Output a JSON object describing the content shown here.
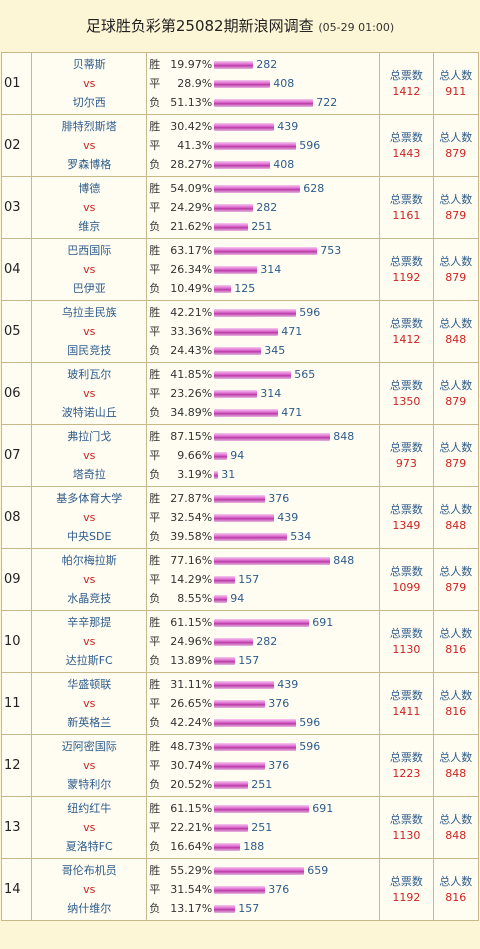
{
  "header": {
    "title": "足球胜负彩第25082期新浪网调查",
    "date": "(05-29 01:00)"
  },
  "labels": {
    "win": "胜",
    "draw": "平",
    "lose": "负",
    "vs": "vs",
    "total_votes": "总票数",
    "total_people": "总人数"
  },
  "matches": [
    {
      "num": "01",
      "home": "贝蒂斯",
      "away": "切尔西",
      "win": {
        "pct": "19.97%",
        "count": "282"
      },
      "draw": {
        "pct": "28.9%",
        "count": "408"
      },
      "lose": {
        "pct": "51.13%",
        "count": "722"
      },
      "votes": "1412",
      "people": "911"
    },
    {
      "num": "02",
      "home": "腓特烈斯塔",
      "away": "罗森博格",
      "win": {
        "pct": "30.42%",
        "count": "439"
      },
      "draw": {
        "pct": "41.3%",
        "count": "596"
      },
      "lose": {
        "pct": "28.27%",
        "count": "408"
      },
      "votes": "1443",
      "people": "879"
    },
    {
      "num": "03",
      "home": "博德",
      "away": "维京",
      "win": {
        "pct": "54.09%",
        "count": "628"
      },
      "draw": {
        "pct": "24.29%",
        "count": "282"
      },
      "lose": {
        "pct": "21.62%",
        "count": "251"
      },
      "votes": "1161",
      "people": "879"
    },
    {
      "num": "04",
      "home": "巴西国际",
      "away": "巴伊亚",
      "win": {
        "pct": "63.17%",
        "count": "753"
      },
      "draw": {
        "pct": "26.34%",
        "count": "314"
      },
      "lose": {
        "pct": "10.49%",
        "count": "125"
      },
      "votes": "1192",
      "people": "879"
    },
    {
      "num": "05",
      "home": "乌拉圭民族",
      "away": "国民竞技",
      "win": {
        "pct": "42.21%",
        "count": "596"
      },
      "draw": {
        "pct": "33.36%",
        "count": "471"
      },
      "lose": {
        "pct": "24.43%",
        "count": "345"
      },
      "votes": "1412",
      "people": "848"
    },
    {
      "num": "06",
      "home": "玻利瓦尔",
      "away": "波特诺山丘",
      "win": {
        "pct": "41.85%",
        "count": "565"
      },
      "draw": {
        "pct": "23.26%",
        "count": "314"
      },
      "lose": {
        "pct": "34.89%",
        "count": "471"
      },
      "votes": "1350",
      "people": "879"
    },
    {
      "num": "07",
      "home": "弗拉门戈",
      "away": "塔奇拉",
      "win": {
        "pct": "87.15%",
        "count": "848"
      },
      "draw": {
        "pct": "9.66%",
        "count": "94"
      },
      "lose": {
        "pct": "3.19%",
        "count": "31"
      },
      "votes": "973",
      "people": "879"
    },
    {
      "num": "08",
      "home": "基多体育大学",
      "away": "中央SDE",
      "win": {
        "pct": "27.87%",
        "count": "376"
      },
      "draw": {
        "pct": "32.54%",
        "count": "439"
      },
      "lose": {
        "pct": "39.58%",
        "count": "534"
      },
      "votes": "1349",
      "people": "848"
    },
    {
      "num": "09",
      "home": "帕尔梅拉斯",
      "away": "水晶竞技",
      "win": {
        "pct": "77.16%",
        "count": "848"
      },
      "draw": {
        "pct": "14.29%",
        "count": "157"
      },
      "lose": {
        "pct": "8.55%",
        "count": "94"
      },
      "votes": "1099",
      "people": "879"
    },
    {
      "num": "10",
      "home": "辛辛那提",
      "away": "达拉斯FC",
      "win": {
        "pct": "61.15%",
        "count": "691"
      },
      "draw": {
        "pct": "24.96%",
        "count": "282"
      },
      "lose": {
        "pct": "13.89%",
        "count": "157"
      },
      "votes": "1130",
      "people": "816"
    },
    {
      "num": "11",
      "home": "华盛顿联",
      "away": "新英格兰",
      "win": {
        "pct": "31.11%",
        "count": "439"
      },
      "draw": {
        "pct": "26.65%",
        "count": "376"
      },
      "lose": {
        "pct": "42.24%",
        "count": "596"
      },
      "votes": "1411",
      "people": "816"
    },
    {
      "num": "12",
      "home": "迈阿密国际",
      "away": "蒙特利尔",
      "win": {
        "pct": "48.73%",
        "count": "596"
      },
      "draw": {
        "pct": "30.74%",
        "count": "376"
      },
      "lose": {
        "pct": "20.52%",
        "count": "251"
      },
      "votes": "1223",
      "people": "848"
    },
    {
      "num": "13",
      "home": "纽约红牛",
      "away": "夏洛特FC",
      "win": {
        "pct": "61.15%",
        "count": "691"
      },
      "draw": {
        "pct": "22.21%",
        "count": "251"
      },
      "lose": {
        "pct": "16.64%",
        "count": "188"
      },
      "votes": "1130",
      "people": "848"
    },
    {
      "num": "14",
      "home": "哥伦布机员",
      "away": "纳什维尔",
      "win": {
        "pct": "55.29%",
        "count": "659"
      },
      "draw": {
        "pct": "31.54%",
        "count": "376"
      },
      "lose": {
        "pct": "13.17%",
        "count": "157"
      },
      "votes": "1192",
      "people": "816"
    }
  ]
}
